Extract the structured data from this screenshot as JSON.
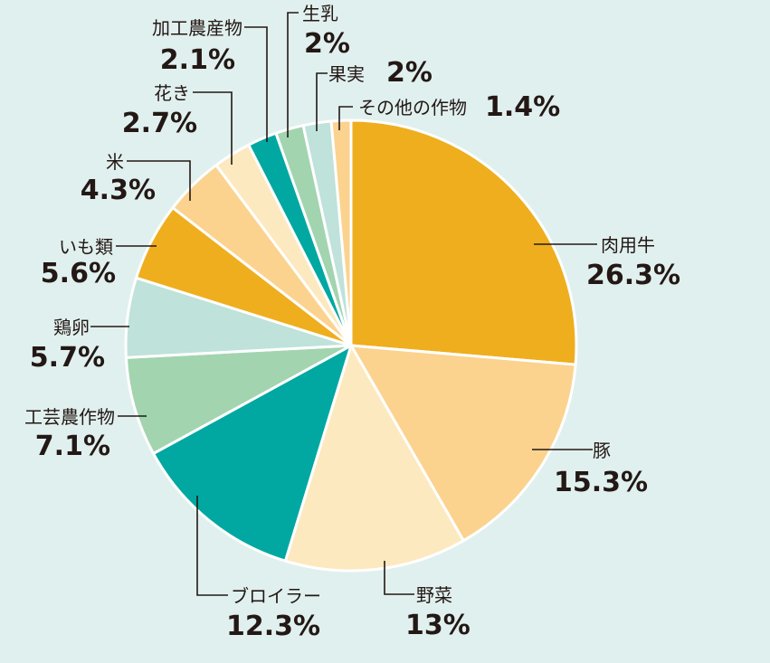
{
  "chart_data": {
    "type": "pie",
    "start": "top (12 o'clock)",
    "direction": "clockwise",
    "slices": [
      {
        "label": "肉用牛",
        "value": 26.3,
        "value_label": "26.3%",
        "color": "#efae1e"
      },
      {
        "label": "豚",
        "value": 15.3,
        "value_label": "15.3%",
        "color": "#fbd38f"
      },
      {
        "label": "野菜",
        "value": 13,
        "value_label": "13%",
        "color": "#fde9bf"
      },
      {
        "label": "ブロイラー",
        "value": 12.3,
        "value_label": "12.3%",
        "color": "#00a8a1"
      },
      {
        "label": "工芸農作物",
        "value": 7.1,
        "value_label": "7.1%",
        "color": "#a2d4b0"
      },
      {
        "label": "鶏卵",
        "value": 5.7,
        "value_label": "5.7%",
        "color": "#bfe2da"
      },
      {
        "label": "いも類",
        "value": 5.6,
        "value_label": "5.6%",
        "color": "#efae1e"
      },
      {
        "label": "米",
        "value": 4.3,
        "value_label": "4.3%",
        "color": "#fbd38f"
      },
      {
        "label": "花き",
        "value": 2.7,
        "value_label": "2.7%",
        "color": "#fde9bf"
      },
      {
        "label": "加工農産物",
        "value": 2.1,
        "value_label": "2.1%",
        "color": "#00a8a1"
      },
      {
        "label": "生乳",
        "value": 2,
        "value_label": "2%",
        "color": "#a2d4b0"
      },
      {
        "label": "果実",
        "value": 2,
        "value_label": "2%",
        "color": "#bfe2da"
      },
      {
        "label": "その他の作物",
        "value": 1.4,
        "value_label": "1.4%",
        "color": "#fbd38f"
      }
    ]
  }
}
